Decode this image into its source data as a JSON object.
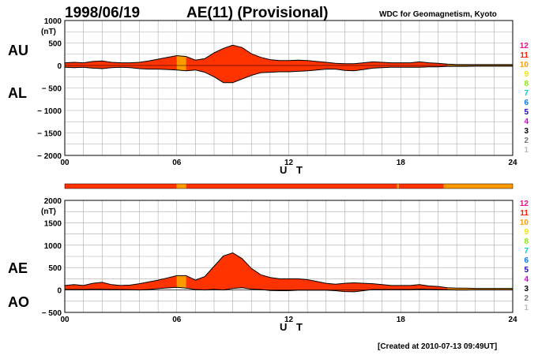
{
  "header": {
    "date": "1998/06/19",
    "title": "AE(11) (Provisional)",
    "organization": "WDC for Geomagnetism, Kyoto"
  },
  "footer": {
    "created": "[Created at 2010-07-13 09:49UT]"
  },
  "colors": {
    "fill_main": "#ff3300",
    "fill_alt": "#ff9900",
    "outline": "#000000",
    "grid": "#a9a9a9"
  },
  "legend": [
    {
      "label": "12",
      "color": "#e8108c"
    },
    {
      "label": "11",
      "color": "#ff1a00"
    },
    {
      "label": "10",
      "color": "#ff9900"
    },
    {
      "label": "9",
      "color": "#e8e800"
    },
    {
      "label": "8",
      "color": "#88ee00"
    },
    {
      "label": "7",
      "color": "#00cccc"
    },
    {
      "label": "6",
      "color": "#0077ff"
    },
    {
      "label": "5",
      "color": "#1a00cc"
    },
    {
      "label": "4",
      "color": "#cc00cc"
    },
    {
      "label": "3",
      "color": "#000000"
    },
    {
      "label": "2",
      "color": "#777777"
    },
    {
      "label": "1",
      "color": "#bbbbbb"
    }
  ],
  "station_bar": [
    {
      "from": 0,
      "to": 6.0,
      "level": 11
    },
    {
      "from": 6.0,
      "to": 6.5,
      "level": 10
    },
    {
      "from": 6.5,
      "to": 17.8,
      "level": 11
    },
    {
      "from": 17.8,
      "to": 17.9,
      "level": 10
    },
    {
      "from": 17.9,
      "to": 20.3,
      "level": 11
    },
    {
      "from": 20.3,
      "to": 24,
      "level": 10
    }
  ],
  "chart_data": [
    {
      "type": "area",
      "panel": "AU/AL",
      "left_labels": [
        "AU",
        "AL"
      ],
      "ylabel": "(nT)",
      "xlabel": "U T",
      "ylim": [
        -2000,
        1000
      ],
      "yticks": [
        1000,
        500,
        0,
        -500,
        -1000,
        -1500,
        -2000
      ],
      "yticklabels": [
        "1000",
        "500",
        "0",
        "− 500",
        "− 1000",
        "− 1500",
        "− 2000"
      ],
      "xlim": [
        0,
        24
      ],
      "xticks": [
        0,
        6,
        12,
        18,
        24
      ],
      "xticklabels": [
        "00",
        "06",
        "12",
        "18",
        "24"
      ],
      "grid": true,
      "x_hours": [
        0,
        0.5,
        1,
        1.5,
        2,
        2.5,
        3,
        3.5,
        4,
        4.5,
        5,
        5.5,
        6,
        6.5,
        7,
        7.5,
        8,
        8.5,
        9,
        9.5,
        10,
        10.5,
        11,
        11.5,
        12,
        12.5,
        13,
        13.5,
        14,
        14.5,
        15,
        15.5,
        16,
        16.5,
        17,
        17.5,
        18,
        18.5,
        19,
        19.5,
        20,
        20.5,
        21,
        21.5,
        22,
        22.5,
        23,
        23.5,
        24
      ],
      "series": [
        {
          "name": "AU",
          "values": [
            60,
            70,
            60,
            90,
            100,
            70,
            60,
            60,
            70,
            100,
            140,
            180,
            220,
            200,
            120,
            150,
            280,
            380,
            450,
            400,
            260,
            180,
            130,
            110,
            110,
            120,
            110,
            90,
            70,
            50,
            40,
            40,
            60,
            80,
            70,
            60,
            60,
            60,
            80,
            60,
            50,
            30,
            20,
            20,
            20,
            20,
            20,
            20,
            20
          ]
        },
        {
          "name": "AL",
          "values": [
            -40,
            -50,
            -40,
            -60,
            -70,
            -50,
            -40,
            -50,
            -70,
            -80,
            -80,
            -90,
            -100,
            -120,
            -100,
            -150,
            -250,
            -380,
            -380,
            -300,
            -220,
            -160,
            -150,
            -140,
            -140,
            -130,
            -120,
            -100,
            -80,
            -80,
            -110,
            -120,
            -90,
            -60,
            -50,
            -40,
            -40,
            -40,
            -40,
            -30,
            -30,
            -20,
            -20,
            -20,
            -15,
            -15,
            -15,
            -15,
            -15
          ]
        }
      ]
    },
    {
      "type": "area",
      "panel": "AE/AO",
      "left_labels": [
        "AE",
        "AO"
      ],
      "ylabel": "(nT)",
      "xlabel": "U T",
      "ylim": [
        -500,
        2000
      ],
      "yticks": [
        2000,
        1500,
        1000,
        500,
        0,
        -500
      ],
      "yticklabels": [
        "2000",
        "1500",
        "1000",
        "500",
        "0",
        "− 500"
      ],
      "xlim": [
        0,
        24
      ],
      "xticks": [
        0,
        6,
        12,
        18,
        24
      ],
      "xticklabels": [
        "00",
        "06",
        "12",
        "18",
        "24"
      ],
      "grid": true,
      "x_hours": [
        0,
        0.5,
        1,
        1.5,
        2,
        2.5,
        3,
        3.5,
        4,
        4.5,
        5,
        5.5,
        6,
        6.5,
        7,
        7.5,
        8,
        8.5,
        9,
        9.5,
        10,
        10.5,
        11,
        11.5,
        12,
        12.5,
        13,
        13.5,
        14,
        14.5,
        15,
        15.5,
        16,
        16.5,
        17,
        17.5,
        18,
        18.5,
        19,
        19.5,
        20,
        20.5,
        21,
        21.5,
        22,
        22.5,
        23,
        23.5,
        24
      ],
      "series": [
        {
          "name": "AE",
          "values": [
            100,
            120,
            100,
            150,
            170,
            120,
            100,
            110,
            140,
            180,
            220,
            270,
            320,
            320,
            220,
            300,
            530,
            760,
            830,
            700,
            480,
            340,
            280,
            250,
            250,
            250,
            230,
            190,
            150,
            130,
            150,
            160,
            150,
            140,
            120,
            100,
            100,
            100,
            120,
            90,
            80,
            50,
            40,
            40,
            35,
            35,
            35,
            35,
            35
          ]
        },
        {
          "name": "AO",
          "values": [
            10,
            10,
            10,
            15,
            15,
            10,
            10,
            5,
            0,
            10,
            30,
            45,
            60,
            40,
            10,
            0,
            15,
            0,
            35,
            50,
            20,
            10,
            -10,
            -15,
            -15,
            -5,
            -5,
            -5,
            -5,
            -15,
            -35,
            -40,
            -15,
            10,
            10,
            10,
            10,
            10,
            20,
            15,
            10,
            5,
            0,
            0,
            3,
            3,
            3,
            3,
            3
          ]
        }
      ]
    }
  ]
}
